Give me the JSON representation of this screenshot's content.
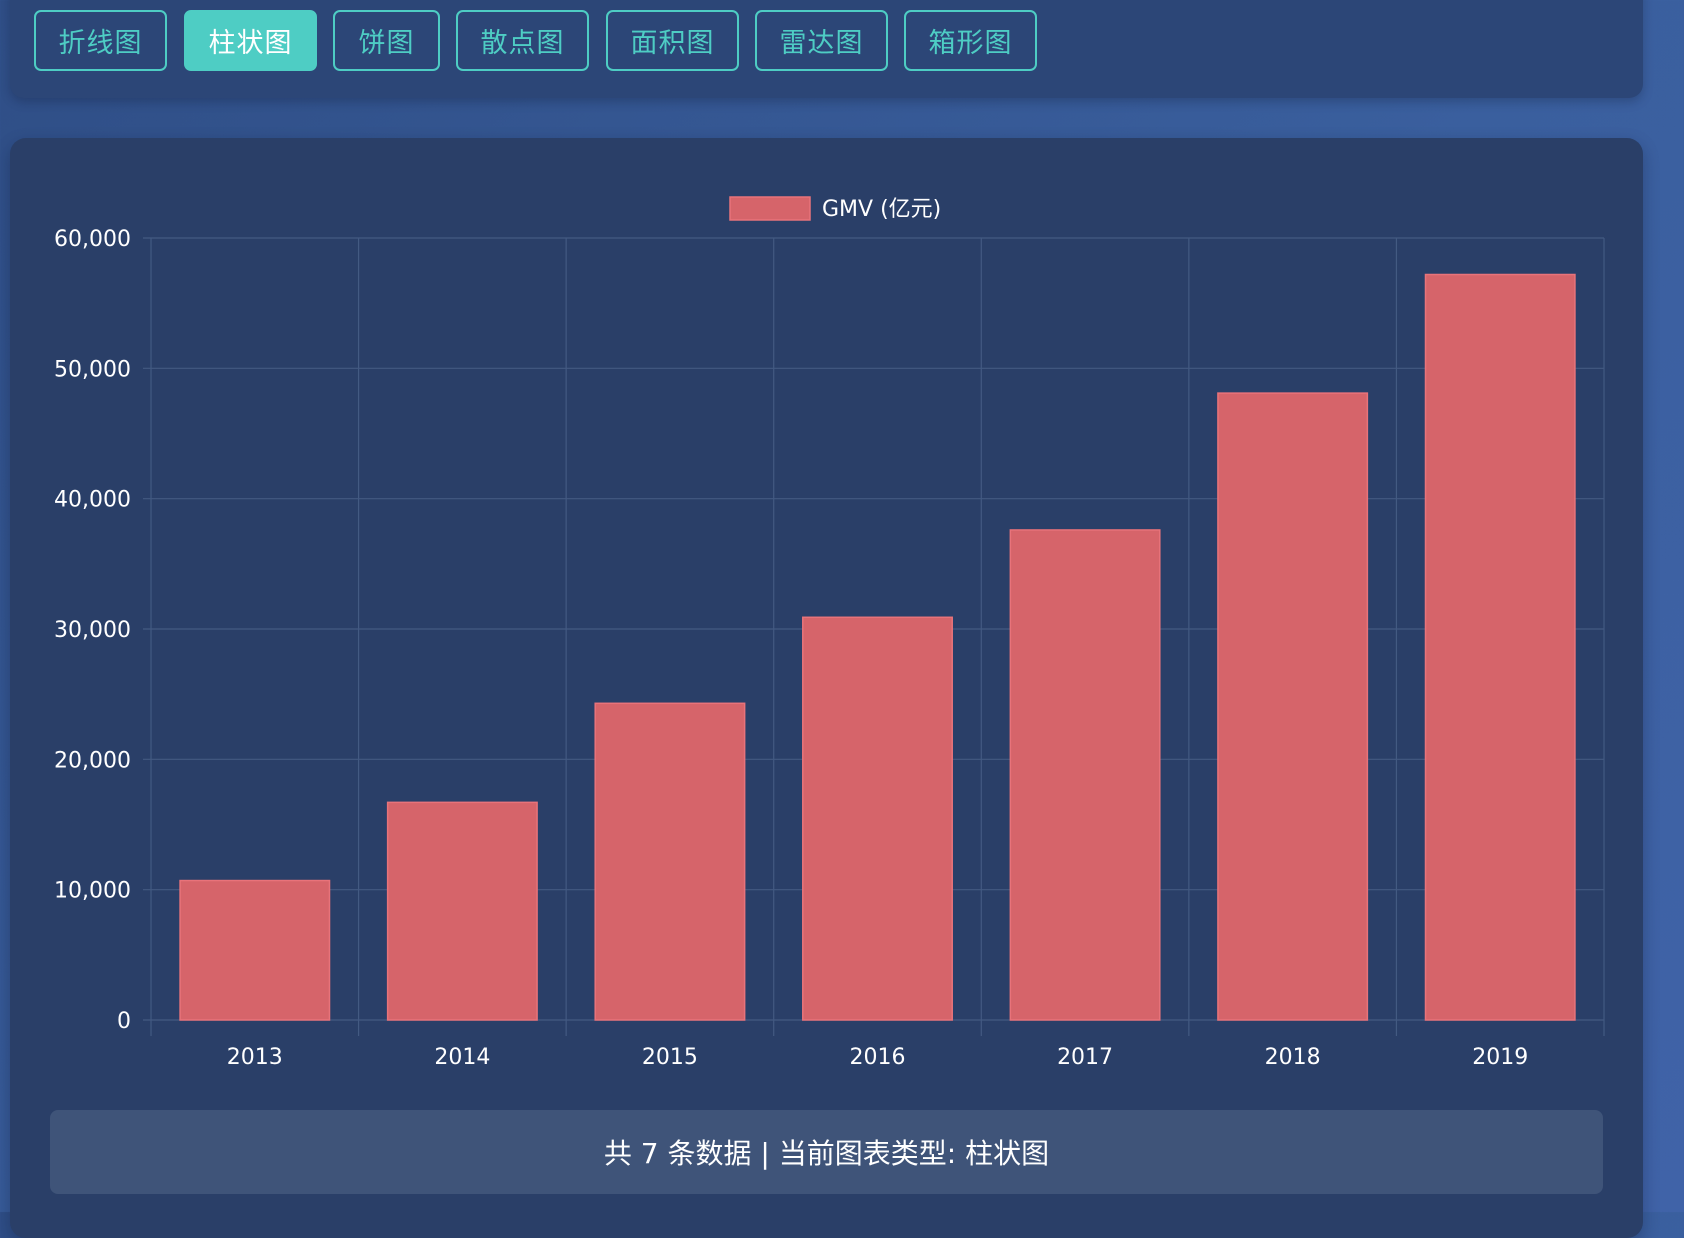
{
  "tabs": [
    {
      "label": "折线图",
      "active": false
    },
    {
      "label": "柱状图",
      "active": true
    },
    {
      "label": "饼图",
      "active": false
    },
    {
      "label": "散点图",
      "active": false
    },
    {
      "label": "面积图",
      "active": false
    },
    {
      "label": "雷达图",
      "active": false
    },
    {
      "label": "箱形图",
      "active": false
    }
  ],
  "colors": {
    "accent": "#4ecdc4",
    "bar_fill": "#d6646a",
    "bar_stroke": "#e8737a",
    "panel": "#2a3f68",
    "grid": "#435a82"
  },
  "chart_data": {
    "type": "bar",
    "categories": [
      "2013",
      "2014",
      "2015",
      "2016",
      "2017",
      "2018",
      "2019"
    ],
    "series": [
      {
        "name": "GMV (亿元)",
        "values": [
          10700,
          16700,
          24300,
          30900,
          37600,
          48100,
          57200
        ]
      }
    ],
    "ylim": [
      0,
      60000
    ],
    "yticks": [
      0,
      10000,
      20000,
      30000,
      40000,
      50000,
      60000
    ],
    "ytick_labels": [
      "0",
      "10,000",
      "20,000",
      "30,000",
      "40,000",
      "50,000",
      "60,000"
    ],
    "grid": true,
    "legend": "top-center"
  },
  "footer": {
    "text": "共 7 条数据 | 当前图表类型: 柱状图"
  }
}
